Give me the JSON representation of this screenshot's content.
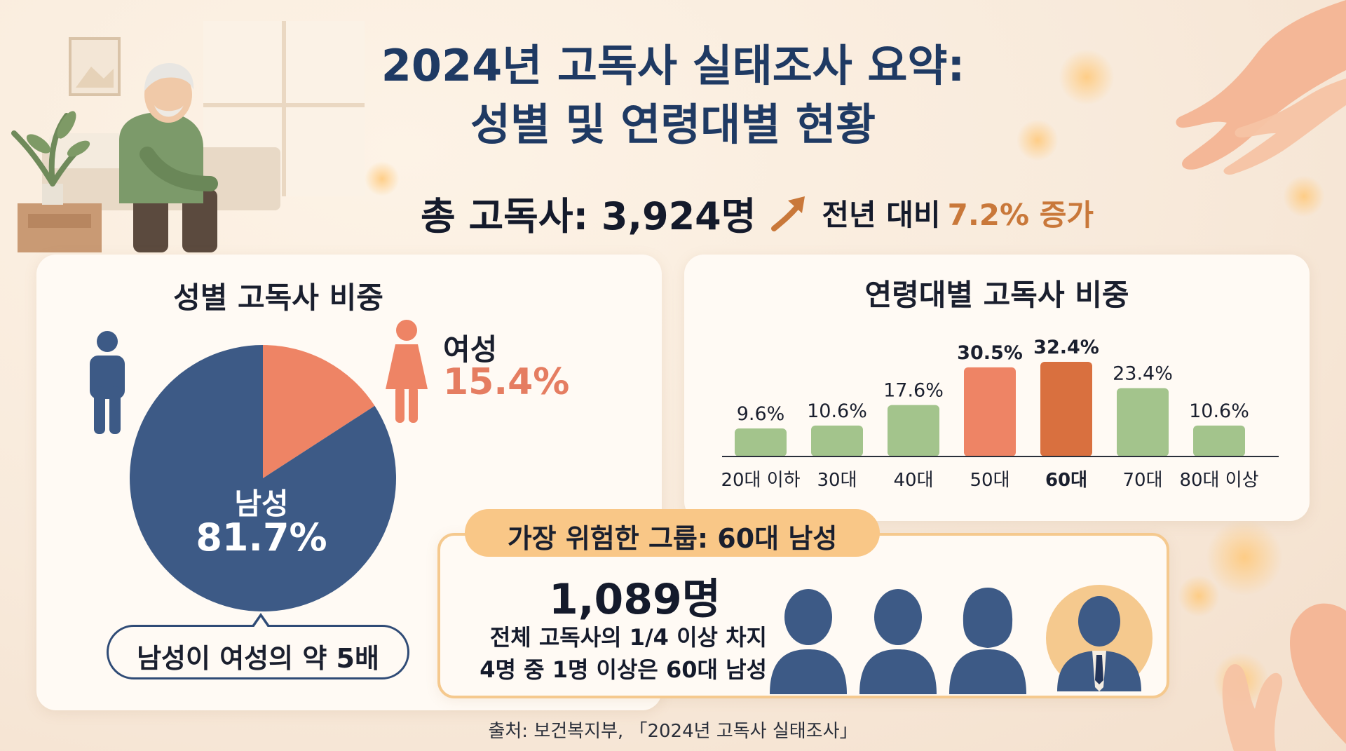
{
  "title_line1": "2024년 고독사 실태조사 요약:",
  "title_line2": "성별 및 연령대별 현황",
  "total": {
    "label": "총 고독사: 3,924명",
    "yoy_prefix": "전년 대비",
    "yoy_value": "7.2% 증가"
  },
  "gender": {
    "title": "성별 고독사 비중",
    "female_label": "여성",
    "female_value": "15.4%",
    "male_label": "남성",
    "male_value": "81.7%",
    "callout": "남성이 여성의 약 5배"
  },
  "age": {
    "title": "연령대별 고독사 비중"
  },
  "risk": {
    "badge": "가장 위험한 그룹: 60대 남성",
    "count": "1,089명",
    "line1": "전체 고독사의 1/4 이상 차지",
    "line2": "4명 중 1명 이상은 60대 남성"
  },
  "source": "출처: 보건복지부, 「2024년 고독사 실태조사」",
  "colors": {
    "male": "#3d5a86",
    "female": "#ee8465",
    "bar_default": "#a3c48c",
    "bar_50s": "#ee8465",
    "bar_60s": "#d9703f",
    "accent": "#c9783a"
  },
  "chart_data": [
    {
      "type": "pie",
      "title": "성별 고독사 비중",
      "slices": [
        {
          "label": "남성",
          "value": 81.7
        },
        {
          "label": "여성",
          "value": 15.4
        }
      ]
    },
    {
      "type": "bar",
      "title": "연령대별 고독사 비중",
      "categories": [
        "20대 이하",
        "30대",
        "40대",
        "50대",
        "60대",
        "70대",
        "80대 이상"
      ],
      "values": [
        9.6,
        10.6,
        17.6,
        30.5,
        32.4,
        23.4,
        10.6
      ],
      "value_labels": [
        "9.6%",
        "10.6%",
        "17.6%",
        "30.5%",
        "32.4%",
        "23.4%",
        "10.6%"
      ],
      "highlight": [
        "50대",
        "60대"
      ],
      "ylim": [
        0,
        35
      ],
      "grid": false
    }
  ]
}
